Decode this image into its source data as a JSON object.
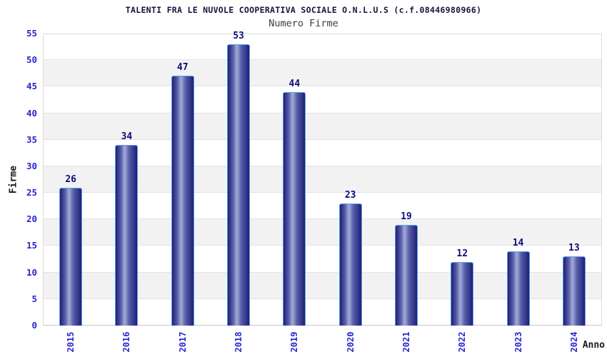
{
  "title": "TALENTI FRA LE NUVOLE COOPERATIVA SOCIALE O.N.L.U.S (c.f.08446980966)",
  "subtitle": "Numero Firme",
  "chart_data": {
    "type": "bar",
    "title": "TALENTI FRA LE NUVOLE COOPERATIVA SOCIALE O.N.L.U.S (c.f.08446980966)",
    "subtitle": "Numero Firme",
    "categories": [
      "2015",
      "2016",
      "2017",
      "2018",
      "2019",
      "2020",
      "2021",
      "2022",
      "2023",
      "2024"
    ],
    "values": [
      26,
      34,
      47,
      53,
      44,
      23,
      19,
      12,
      14,
      13
    ],
    "xlabel": "Anno",
    "ylabel": "Firme",
    "ylim": [
      0,
      55
    ],
    "ytick_step": 5,
    "yticks": [
      0,
      5,
      10,
      15,
      20,
      25,
      30,
      35,
      40,
      45,
      50,
      55
    ],
    "grid": "horizontal gridlines with alternating shaded bands",
    "legend_position": "none",
    "colors": {
      "bar_edge_dark": "#1f1f76",
      "bar_center_light": "#a3abd8",
      "bar_border": "#57a0e8",
      "value_label": "#0c0c7e",
      "axis_tick_label": "#2727cf",
      "title_text": "#15153d",
      "subtitle_text": "#3d3d3d",
      "band_fill": "#f2f2f2",
      "gridline": "#e3e3e3",
      "plot_border": "#dcdcdc",
      "background": "#ffffff"
    }
  }
}
